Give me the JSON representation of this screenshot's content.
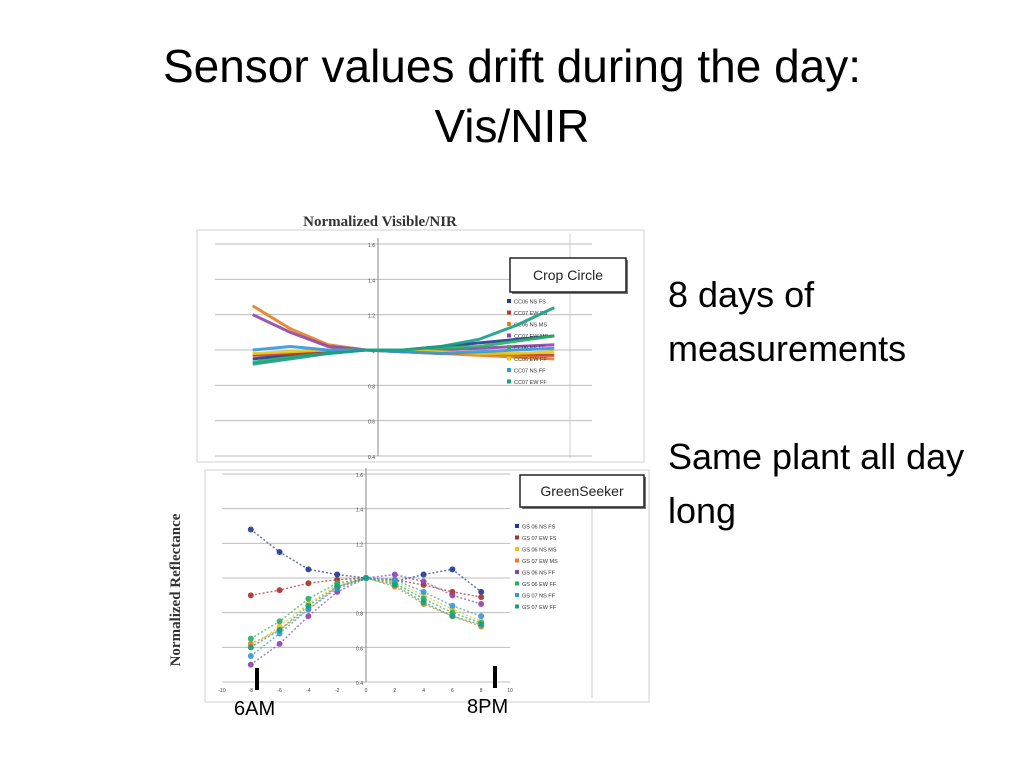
{
  "slide": {
    "title_line1": "Sensor values drift during the day:",
    "title_line2": "Vis/NIR",
    "bullets": [
      "8 days of measurements",
      "Same plant all day long"
    ],
    "annotations": {
      "start_label": "6AM",
      "end_label": "8PM"
    }
  },
  "chart_data": [
    {
      "type": "line",
      "title": "Normalized Visible/NIR",
      "sensor_label": "Crop Circle",
      "xlim": [
        -10,
        10
      ],
      "ylim": [
        0.4,
        1.6
      ],
      "y_ticks": [
        "1.6",
        "1.4",
        "1.2",
        "1",
        "0.8",
        "0.6",
        "0.4"
      ],
      "grid": true,
      "legend_position": "right",
      "x": [
        -8,
        -6,
        -4,
        -2,
        0,
        2,
        4,
        6,
        8
      ],
      "series": [
        {
          "name": "CC06 NS FS",
          "color": "#1f3a93",
          "values": [
            0.95,
            0.97,
            0.99,
            1.0,
            1.0,
            1.02,
            1.04,
            1.06,
            1.08
          ]
        },
        {
          "name": "CC07 EW FS",
          "color": "#c0392b",
          "values": [
            0.97,
            0.98,
            0.99,
            1.0,
            0.99,
            0.98,
            0.98,
            0.97,
            0.97
          ]
        },
        {
          "name": "CC06 NS MS",
          "color": "#e67e22",
          "values": [
            1.25,
            1.12,
            1.03,
            1.0,
            0.99,
            0.98,
            0.97,
            0.96,
            0.95
          ]
        },
        {
          "name": "CC07 EW MS",
          "color": "#8e44ad",
          "values": [
            1.2,
            1.1,
            1.02,
            1.0,
            0.99,
            1.0,
            1.01,
            1.02,
            1.03
          ]
        },
        {
          "name": "CC06 NS FF",
          "color": "#27ae60",
          "values": [
            0.93,
            0.96,
            0.98,
            1.0,
            1.0,
            1.01,
            1.02,
            1.05,
            1.08
          ]
        },
        {
          "name": "CC06 EW FF",
          "color": "#e6c619",
          "values": [
            0.98,
            0.99,
            1.0,
            1.0,
            1.0,
            0.99,
            0.98,
            0.98,
            0.99
          ]
        },
        {
          "name": "CC07 NS FF",
          "color": "#3498db",
          "values": [
            1.0,
            1.02,
            1.0,
            1.0,
            0.99,
            0.98,
            0.99,
            1.0,
            1.01
          ]
        },
        {
          "name": "CC07 EW FF",
          "color": "#16a085",
          "values": [
            0.92,
            0.95,
            0.98,
            1.0,
            1.0,
            1.02,
            1.06,
            1.14,
            1.24
          ]
        }
      ]
    },
    {
      "type": "scatter",
      "title": "",
      "sensor_label": "GreenSeeker",
      "ylabel": "Normalized  Reflectance",
      "xlim": [
        -10,
        10
      ],
      "ylim": [
        0.4,
        1.6
      ],
      "y_ticks": [
        "1.6",
        "1.4",
        "1.2",
        "1",
        "0.8",
        "0.6",
        "0.4"
      ],
      "x_ticks": [
        "-10",
        "-8",
        "-6",
        "-4",
        "-2",
        "0",
        "2",
        "4",
        "6",
        "8",
        "10"
      ],
      "grid": true,
      "legend_position": "right",
      "x": [
        -8,
        -6,
        -4,
        -2,
        0,
        2,
        4,
        6,
        8
      ],
      "series": [
        {
          "name": "GS 06 NS FS",
          "color": "#1f3a93",
          "values": [
            1.28,
            1.15,
            1.05,
            1.02,
            1.0,
            0.98,
            1.02,
            1.05,
            0.92
          ]
        },
        {
          "name": "GS 07 EW FS",
          "color": "#a93226",
          "values": [
            0.9,
            0.93,
            0.97,
            0.99,
            1.0,
            0.99,
            0.96,
            0.92,
            0.89
          ]
        },
        {
          "name": "GS 06 NS MS",
          "color": "#e6c619",
          "values": [
            0.6,
            0.72,
            0.85,
            0.96,
            1.0,
            0.98,
            0.9,
            0.82,
            0.75
          ]
        },
        {
          "name": "GS 07 EW MS",
          "color": "#e67e22",
          "values": [
            0.62,
            0.7,
            0.82,
            0.95,
            1.0,
            0.95,
            0.85,
            0.78,
            0.72
          ]
        },
        {
          "name": "GS 06 NS FF",
          "color": "#8e44ad",
          "values": [
            0.5,
            0.62,
            0.78,
            0.92,
            1.0,
            1.02,
            0.98,
            0.9,
            0.85
          ]
        },
        {
          "name": "GS 06 EW FF",
          "color": "#27ae60",
          "values": [
            0.65,
            0.75,
            0.88,
            0.97,
            1.0,
            0.97,
            0.88,
            0.8,
            0.74
          ]
        },
        {
          "name": "GS 07 NS FF",
          "color": "#3498db",
          "values": [
            0.55,
            0.68,
            0.82,
            0.94,
            1.0,
            0.99,
            0.92,
            0.84,
            0.78
          ]
        },
        {
          "name": "GS 07 EW FF",
          "color": "#16a085",
          "values": [
            0.6,
            0.7,
            0.84,
            0.95,
            1.0,
            0.96,
            0.86,
            0.78,
            0.73
          ]
        }
      ]
    }
  ]
}
